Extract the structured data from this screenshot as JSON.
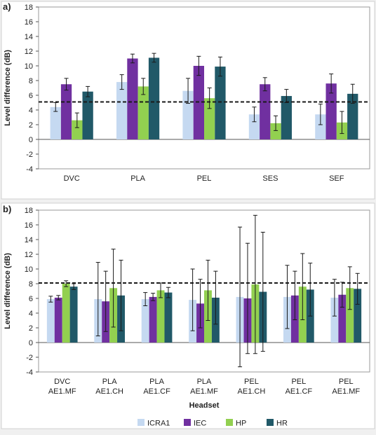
{
  "chart_data": [
    {
      "type": "bar",
      "panel_label": "a)",
      "ylabel": "Level difference (dB)",
      "xlabel": "",
      "ylim": [
        -4,
        18
      ],
      "yticks": [
        "18",
        "16",
        "14",
        "12",
        "10",
        "8",
        "6",
        "4",
        "2",
        "0",
        "-2",
        "-4"
      ],
      "reference_line": 5.1,
      "categories": [
        "DVC",
        "PLA",
        "PEL",
        "SES",
        "SEF"
      ],
      "series": [
        {
          "name": "ICRA1",
          "color": "#c5d9f1",
          "values": [
            4.4,
            7.8,
            6.6,
            3.4,
            3.4
          ],
          "err": [
            0.6,
            1.0,
            1.7,
            1.0,
            1.4
          ]
        },
        {
          "name": "IEC",
          "color": "#7030a0",
          "values": [
            7.5,
            11.0,
            10.0,
            7.5,
            7.6
          ],
          "err": [
            0.8,
            0.6,
            1.3,
            0.9,
            1.3
          ]
        },
        {
          "name": "HP",
          "color": "#92d050",
          "values": [
            2.6,
            7.2,
            5.6,
            2.2,
            2.3
          ],
          "err": [
            1.0,
            1.1,
            1.4,
            1.0,
            1.5
          ]
        },
        {
          "name": "HR",
          "color": "#215968",
          "values": [
            6.5,
            11.1,
            9.9,
            5.9,
            6.2
          ],
          "err": [
            0.7,
            0.6,
            1.3,
            0.9,
            1.3
          ]
        }
      ]
    },
    {
      "type": "bar",
      "panel_label": "b)",
      "ylabel": "Level difference (dB)",
      "xlabel": "Headset",
      "ylim": [
        -4,
        18
      ],
      "yticks": [
        "18",
        "16",
        "14",
        "12",
        "10",
        "8",
        "6",
        "4",
        "2",
        "0",
        "-2",
        "-4"
      ],
      "reference_line": 8.1,
      "categories": [
        [
          "DVC",
          "AE1.MF"
        ],
        [
          "PLA",
          "AE1.CH"
        ],
        [
          "PLA",
          "AE1.CF"
        ],
        [
          "PLA",
          "AE1.MF"
        ],
        [
          "PEL",
          "AE1.CH"
        ],
        [
          "PEL",
          "AE1.CF"
        ],
        [
          "PEL",
          "AE1.MF"
        ]
      ],
      "series": [
        {
          "name": "ICRA1",
          "color": "#c5d9f1",
          "values": [
            5.9,
            5.9,
            5.9,
            5.8,
            6.2,
            6.2,
            6.1
          ],
          "err": [
            0.4,
            5.0,
            0.9,
            4.2,
            9.5,
            4.3,
            2.5
          ]
        },
        {
          "name": "IEC",
          "color": "#7030a0",
          "values": [
            6.1,
            5.6,
            6.2,
            5.3,
            6.0,
            6.4,
            6.5
          ],
          "err": [
            0.3,
            4.1,
            0.5,
            3.3,
            7.5,
            3.3,
            1.7
          ]
        },
        {
          "name": "HP",
          "color": "#92d050",
          "values": [
            8.0,
            7.4,
            7.1,
            7.1,
            7.9,
            7.6,
            7.4
          ],
          "err": [
            0.4,
            5.3,
            1.0,
            4.1,
            9.4,
            4.5,
            2.9
          ]
        },
        {
          "name": "HR",
          "color": "#215968",
          "values": [
            7.6,
            6.4,
            6.8,
            6.1,
            6.9,
            7.2,
            7.3
          ],
          "err": [
            0.4,
            4.8,
            0.7,
            3.6,
            8.1,
            3.6,
            2.1
          ]
        }
      ]
    }
  ],
  "legend": [
    {
      "name": "ICRA1",
      "color": "#c5d9f1"
    },
    {
      "name": "IEC",
      "color": "#7030a0"
    },
    {
      "name": "HP",
      "color": "#92d050"
    },
    {
      "name": "HR",
      "color": "#215968"
    }
  ]
}
